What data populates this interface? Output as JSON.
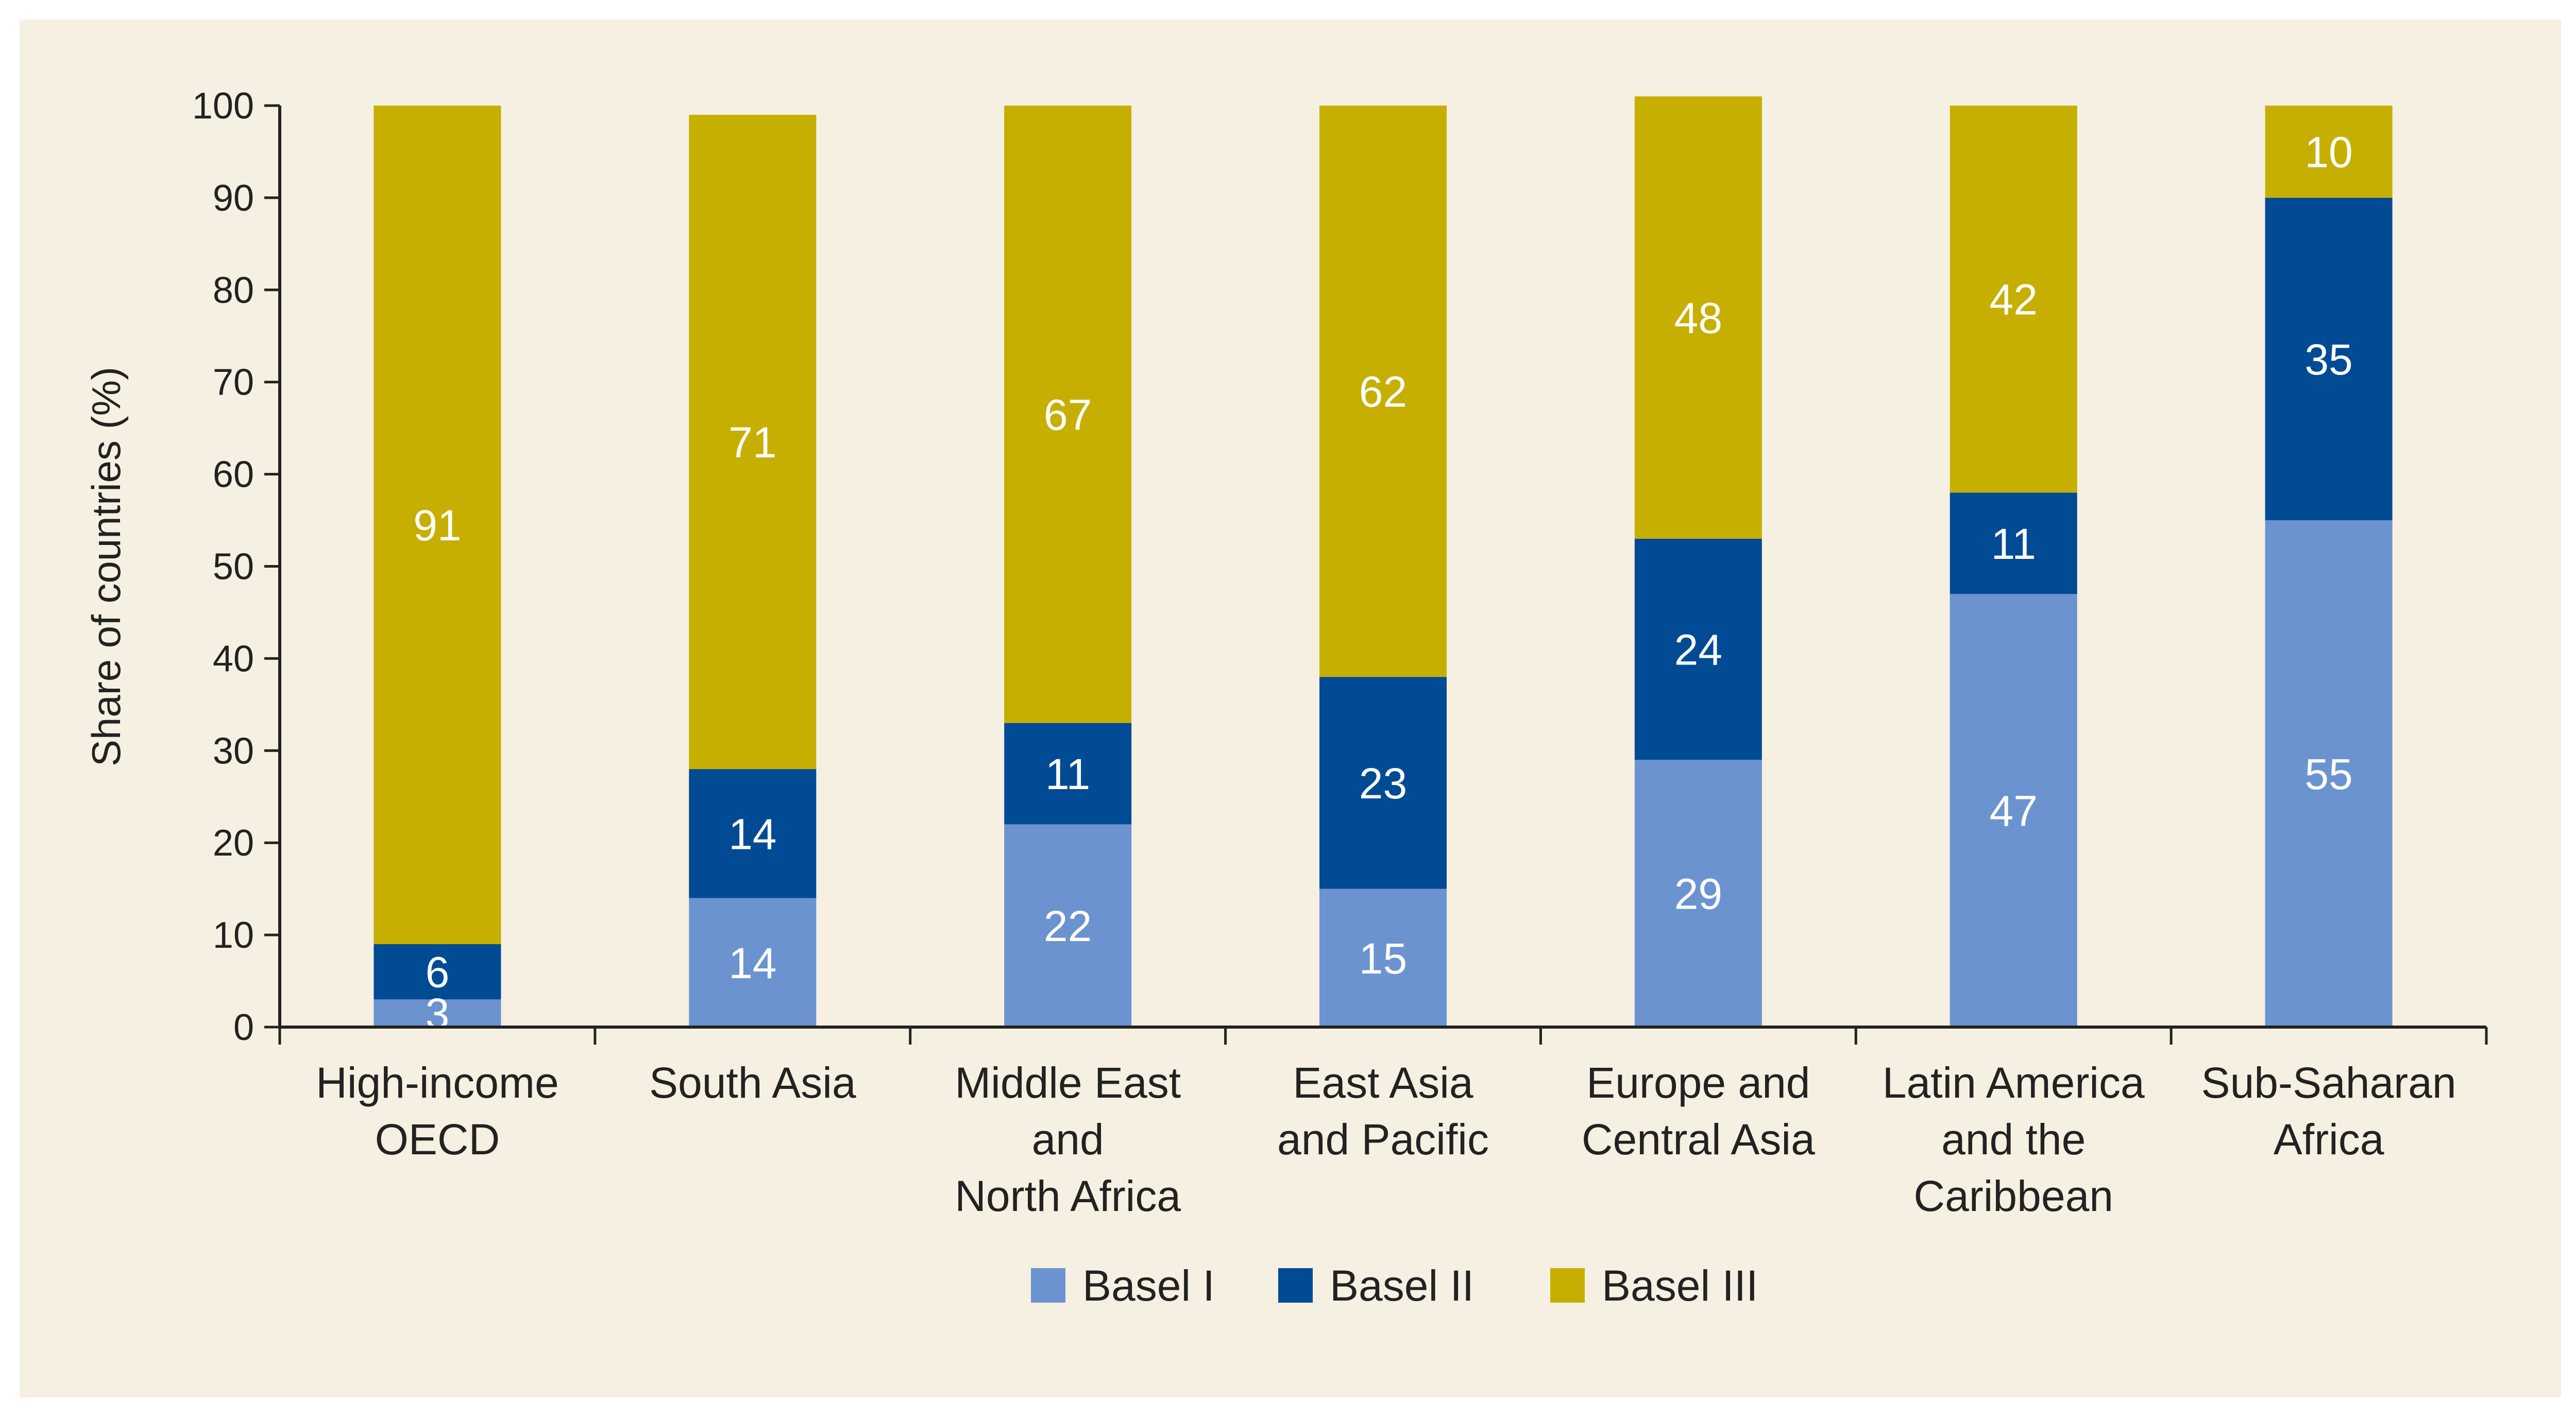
{
  "chart_data": {
    "type": "bar",
    "stacked": true,
    "ylabel": "Share of countries (%)",
    "ylim": [
      0,
      100
    ],
    "yticks": [
      0,
      10,
      20,
      30,
      40,
      50,
      60,
      70,
      80,
      90,
      100
    ],
    "categories": [
      [
        "High-income",
        "OECD"
      ],
      [
        "South Asia"
      ],
      [
        "Middle East",
        "and",
        "North Africa"
      ],
      [
        "East Asia",
        "and Pacific"
      ],
      [
        "Europe and",
        "Central Asia"
      ],
      [
        "Latin America",
        "and the",
        "Caribbean"
      ],
      [
        "Sub-Saharan",
        "Africa"
      ]
    ],
    "series": [
      {
        "name": "Basel I",
        "color": "#6b93cf",
        "values": [
          3,
          14,
          22,
          15,
          29,
          47,
          55
        ]
      },
      {
        "name": "Basel II",
        "color": "#004b93",
        "values": [
          6,
          14,
          11,
          23,
          24,
          11,
          35
        ]
      },
      {
        "name": "Basel III",
        "color": "#c6af00",
        "values": [
          91,
          71,
          67,
          62,
          48,
          42,
          10
        ]
      }
    ],
    "legend_position": "bottom-center"
  }
}
